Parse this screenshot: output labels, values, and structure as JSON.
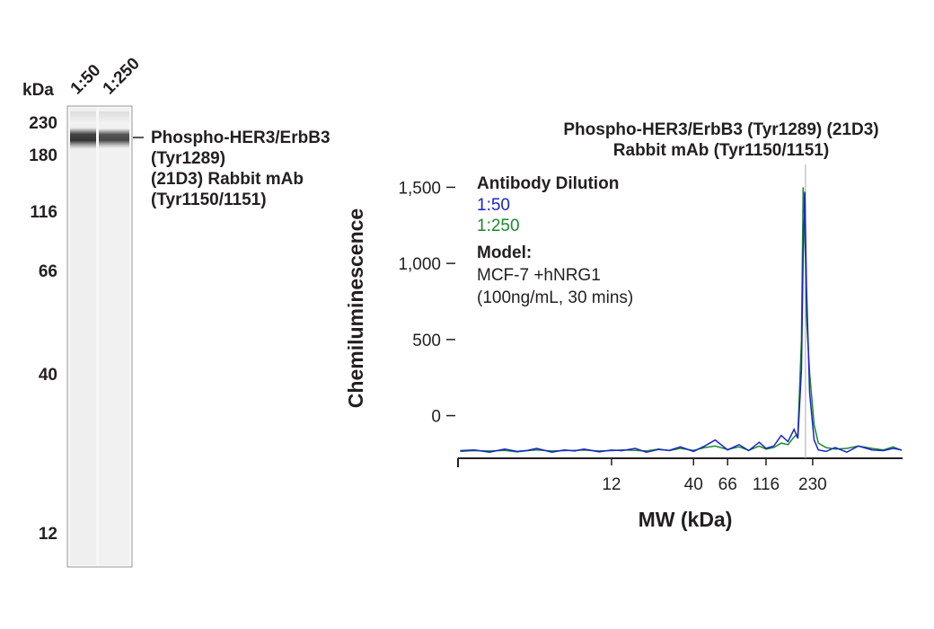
{
  "blot": {
    "unit_label": "kDa",
    "lanes": [
      "1:50",
      "1:250"
    ],
    "markers": [
      230,
      180,
      116,
      66,
      40,
      12
    ],
    "band_label": [
      "Phospho-HER3/ErbB3",
      "(Tyr1289)",
      "(21D3) Rabbit mAb",
      "(Tyr1150/1151)"
    ]
  },
  "chart_data": {
    "type": "line",
    "title": [
      "Phospho-HER3/ErbB3 (Tyr1289) (21D3)",
      "Rabbit mAb (Tyr1150/1151)"
    ],
    "xlabel": "MW (kDa)",
    "ylabel": "Chemiluminescence",
    "xscale": "log",
    "xlim": [
      1.26,
      861
    ],
    "xticks": [
      12,
      40,
      66,
      116,
      230
    ],
    "ylim": [
      -280,
      1650
    ],
    "yticks": [
      0,
      500,
      {
        "value": 1000,
        "label": "1,000"
      },
      {
        "value": 1500,
        "label": "1,500"
      }
    ],
    "reference_x": 207,
    "legend_title": "Antibody Dilution",
    "annotations": [
      "Model:",
      "MCF-7 +hNRG1",
      "(100ng/mL, 30 mins)"
    ],
    "x": [
      1.3,
      1.6,
      2,
      2.5,
      3,
      3.5,
      4,
      5,
      6,
      7,
      8,
      10,
      12,
      14,
      17,
      20,
      24,
      28,
      33,
      40,
      47,
      55,
      66,
      78,
      90,
      105,
      116,
      130,
      145,
      160,
      175,
      185,
      195,
      200,
      205,
      210,
      220,
      235,
      250,
      280,
      320,
      380,
      450,
      550,
      650,
      750,
      850
    ],
    "series": [
      {
        "name": "1:50",
        "color": "#1a22d0",
        "values": [
          -230,
          -225,
          -240,
          -220,
          -235,
          -228,
          -215,
          -240,
          -225,
          -232,
          -220,
          -238,
          -226,
          -230,
          -215,
          -240,
          -222,
          -228,
          -205,
          -235,
          -200,
          -160,
          -225,
          -190,
          -230,
          -175,
          -215,
          -200,
          -130,
          -170,
          -90,
          -150,
          300,
          1050,
          1470,
          850,
          150,
          -160,
          -225,
          -235,
          -210,
          -240,
          -200,
          -225,
          -230,
          -215,
          -225
        ]
      },
      {
        "name": "1:250",
        "color": "#1a8a2a",
        "values": [
          -235,
          -230,
          -232,
          -228,
          -238,
          -230,
          -225,
          -232,
          -230,
          -228,
          -226,
          -232,
          -230,
          -225,
          -228,
          -232,
          -220,
          -230,
          -215,
          -228,
          -210,
          -200,
          -222,
          -205,
          -228,
          -200,
          -220,
          -210,
          -180,
          -190,
          -140,
          -120,
          500,
          1500,
          1250,
          650,
          280,
          -60,
          -180,
          -210,
          -220,
          -215,
          -200,
          -215,
          -225,
          -205,
          -228
        ]
      }
    ]
  }
}
